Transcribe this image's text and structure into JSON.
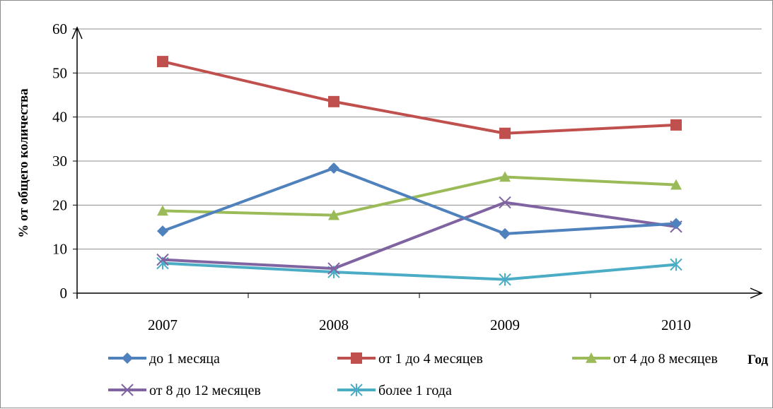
{
  "chart_data": {
    "type": "line",
    "categories": [
      "2007",
      "2008",
      "2009",
      "2010"
    ],
    "ylabel": "% от общего количества",
    "xlabel": "Год",
    "ylim": [
      0,
      60
    ],
    "yticks": [
      "0",
      "10",
      "20",
      "30",
      "40",
      "50",
      "60"
    ],
    "grid": true,
    "legend_position": "bottom",
    "series": [
      {
        "name": "до 1 месяца",
        "values": [
          14.1,
          28.4,
          13.5,
          15.8
        ],
        "color": "#4f81bd",
        "marker": "diamond"
      },
      {
        "name": "от 1 до 4 месяцев",
        "values": [
          52.6,
          43.5,
          36.3,
          38.2
        ],
        "color": "#c0504d",
        "marker": "square"
      },
      {
        "name": "от 4 до 8 месяцев",
        "values": [
          18.7,
          17.7,
          26.4,
          24.6
        ],
        "color": "#9bbb59",
        "marker": "triangle"
      },
      {
        "name": "от 8 до 12 месяцев",
        "values": [
          7.6,
          5.6,
          20.6,
          15.1
        ],
        "color": "#8064a2",
        "marker": "x"
      },
      {
        "name": "более 1 года",
        "values": [
          6.8,
          4.8,
          3.1,
          6.5
        ],
        "color": "#4bacc6",
        "marker": "star"
      }
    ]
  }
}
